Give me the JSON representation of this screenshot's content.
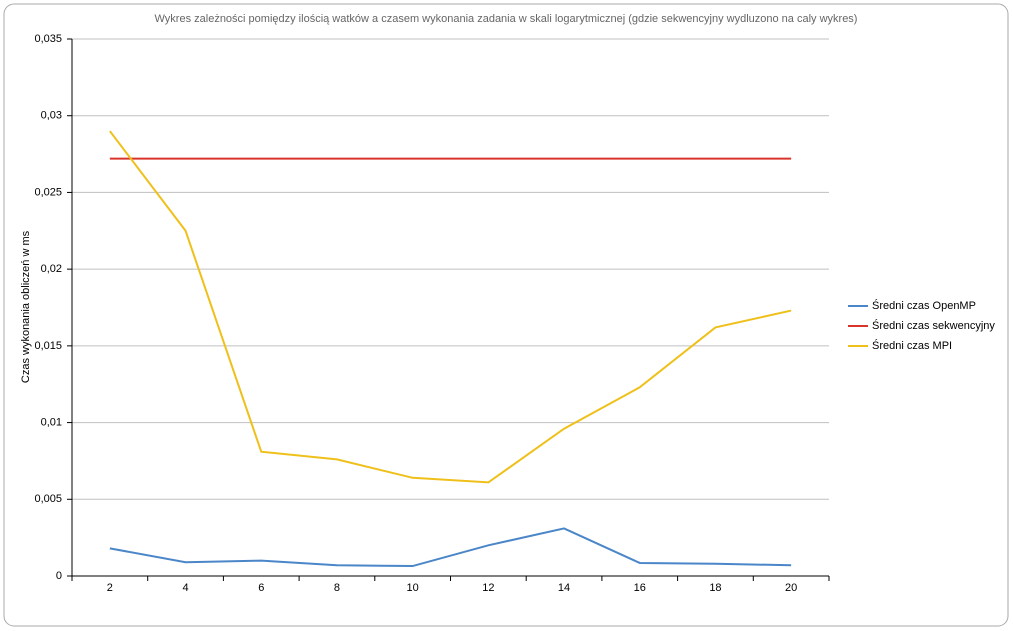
{
  "chart_data": {
    "type": "line",
    "title": "Wykres zależności pomiędzy ilością watków a czasem wykonania zadania w skali logarytmicznej (gdzie sekwencyjny wydluzono na caly wykres)",
    "y_label": "Czas wykonania obliczeń w ms",
    "categories": [
      "2",
      "4",
      "6",
      "8",
      "10",
      "12",
      "14",
      "16",
      "18",
      "20"
    ],
    "series": [
      {
        "name": "Średni czas OpenMP",
        "color": "#4a86c8",
        "values": [
          0.0018,
          0.0009,
          0.001,
          0.0007,
          0.00065,
          0.002,
          0.0031,
          0.00085,
          0.0008,
          0.0007
        ]
      },
      {
        "name": "Średni czas sekwencyjny",
        "color": "#d9342b",
        "values": [
          0.0272,
          0.0272,
          0.0272,
          0.0272,
          0.0272,
          0.0272,
          0.0272,
          0.0272,
          0.0272,
          0.0272
        ]
      },
      {
        "name": "Średni czas MPI",
        "color": "#efc019",
        "values": [
          0.029,
          0.0225,
          0.0081,
          0.0076,
          0.0064,
          0.0061,
          0.0096,
          0.0123,
          0.0162,
          0.0173
        ]
      }
    ],
    "ylim": [
      0,
      0.035
    ],
    "yticks": [
      0,
      {
        "value": 0.005,
        "label": "0,005"
      },
      {
        "value": 0.01,
        "label": "0,01"
      },
      {
        "value": 0.015,
        "label": "0,015"
      },
      {
        "value": 0.02,
        "label": "0,02"
      },
      {
        "value": 0.025,
        "label": "0,025"
      },
      {
        "value": 0.03,
        "label": "0,03"
      },
      {
        "value": 0.035,
        "label": "0,035"
      }
    ],
    "grid": true,
    "legend": "right"
  }
}
